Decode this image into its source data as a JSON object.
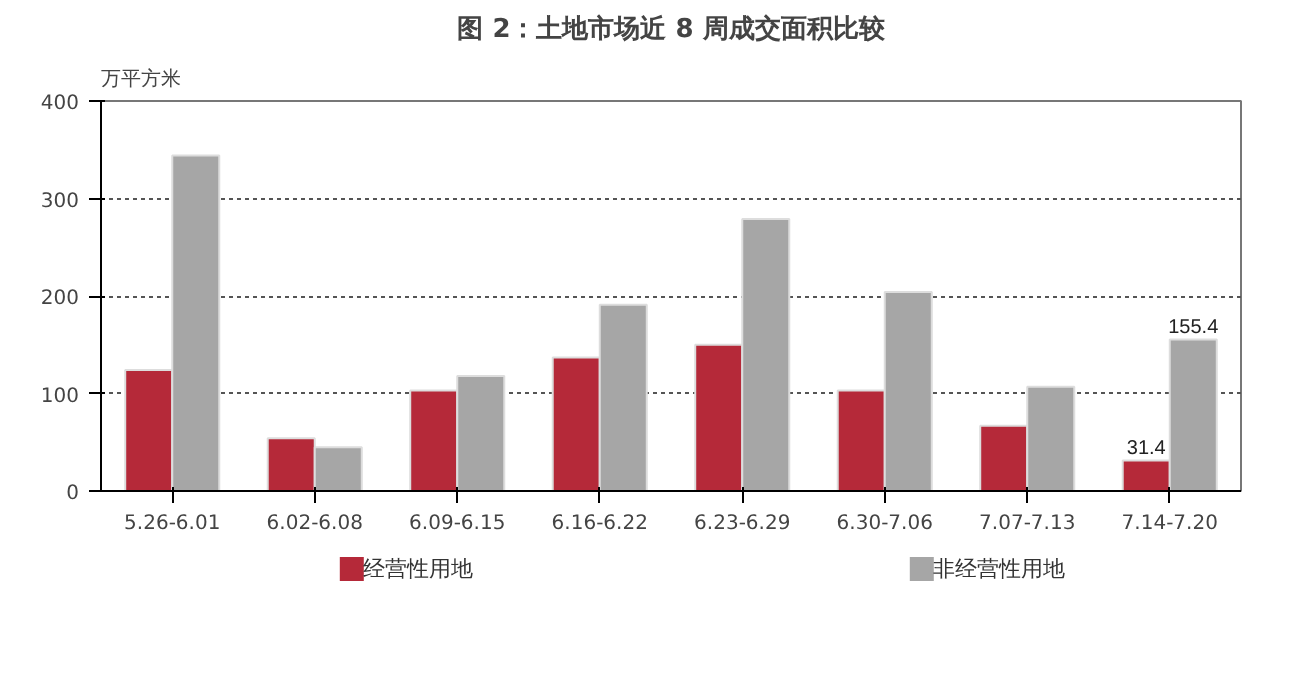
{
  "chart_data": {
    "type": "bar",
    "title": "图 2：土地市场近 8 周成交面积比较",
    "ylabel": "万平方米",
    "categories": [
      "5.26-6.01",
      "6.02-6.08",
      "6.09-6.15",
      "6.16-6.22",
      "6.23-6.29",
      "6.30-7.06",
      "7.07-7.13",
      "7.14-7.20"
    ],
    "series": [
      {
        "name": "经营性用地",
        "color": "#b52939",
        "values": [
          124,
          54,
          103,
          137,
          150,
          103,
          67,
          31.4
        ],
        "value_labels": [
          null,
          null,
          null,
          null,
          null,
          null,
          null,
          "31.4"
        ]
      },
      {
        "name": "非经营性用地",
        "color": "#a6a6a6",
        "values": [
          344,
          45,
          118,
          191,
          279,
          204,
          107,
          155.4
        ],
        "value_labels": [
          null,
          null,
          null,
          null,
          null,
          null,
          null,
          "155.4"
        ]
      }
    ],
    "ylim": [
      0,
      400
    ],
    "yticks": [
      0,
      100,
      200,
      300,
      400
    ],
    "grid": "y",
    "legend": "bottom"
  }
}
